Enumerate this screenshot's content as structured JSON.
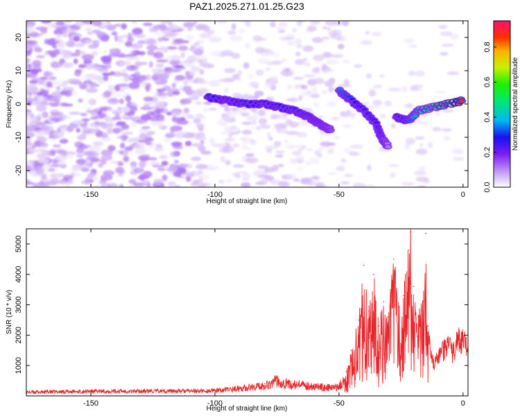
{
  "title": "PAZ1.2025.271.01.25.G23",
  "colors": {
    "snr_line": "#e8262a",
    "axis": "#000000",
    "background": "#ffffff"
  },
  "chart_data": [
    {
      "type": "heatmap",
      "name": "spectrogram",
      "xlabel": "Height of straight line (km)",
      "ylabel": "Frequency (Hz)",
      "xlim": [
        -176,
        2
      ],
      "ylim": [
        -25,
        25
      ],
      "x_ticks": [
        -150,
        -100,
        -50,
        0
      ],
      "y_ticks": [
        -20,
        -10,
        0,
        10,
        20
      ],
      "colorbar": {
        "label": "Normalized spectral amplitude",
        "range": [
          0,
          0.95
        ],
        "ticks": [
          0.0,
          0.2,
          0.4,
          0.6,
          0.8
        ],
        "colormap": "white-purple-blue-cyan-green-yellow-orange-red"
      },
      "ridge": [
        {
          "x": -103,
          "f": 2,
          "amp": 0.3
        },
        {
          "x": -95,
          "f": 1,
          "amp": 0.22
        },
        {
          "x": -88,
          "f": 0,
          "amp": 0.3
        },
        {
          "x": -80,
          "f": 0,
          "amp": 0.25
        },
        {
          "x": -74,
          "f": -1,
          "amp": 0.28
        },
        {
          "x": -68,
          "f": -2,
          "amp": 0.25
        },
        {
          "x": -62,
          "f": -4,
          "amp": 0.22
        },
        {
          "x": -58,
          "f": -6,
          "amp": 0.2
        },
        {
          "x": -53,
          "f": -8,
          "amp": 0.15
        },
        {
          "x": -50,
          "f": 4,
          "amp": 0.35
        },
        {
          "x": -45,
          "f": 1,
          "amp": 0.3
        },
        {
          "x": -40,
          "f": -2,
          "amp": 0.25
        },
        {
          "x": -35,
          "f": -6,
          "amp": 0.25
        },
        {
          "x": -33,
          "f": -10,
          "amp": 0.2
        },
        {
          "x": -30,
          "f": -13,
          "amp": 0.1
        },
        {
          "x": -27,
          "f": -4,
          "amp": 0.25
        },
        {
          "x": -22,
          "f": -5,
          "amp": 0.3
        },
        {
          "x": -18,
          "f": -2,
          "amp": 0.45
        },
        {
          "x": -12,
          "f": -1,
          "amp": 0.5
        },
        {
          "x": -6,
          "f": 0,
          "amp": 0.6
        },
        {
          "x": 0,
          "f": 1,
          "amp": 0.9
        }
      ]
    },
    {
      "type": "line",
      "name": "snr",
      "xlabel": "Height of straight line (km)",
      "ylabel": "SNR (10 * v/v)",
      "xlim": [
        -176,
        2
      ],
      "ylim": [
        0,
        5500
      ],
      "x_ticks": [
        -150,
        -100,
        -50,
        0
      ],
      "y_ticks": [
        1000,
        2000,
        3000,
        4000,
        5000
      ],
      "series": [
        {
          "name": "SNR",
          "x": [
            -176,
            -150,
            -100,
            -90,
            -80,
            -75,
            -70,
            -60,
            -55,
            -50,
            -47,
            -45,
            -42,
            -40,
            -38,
            -36,
            -34,
            -32,
            -30,
            -28,
            -26,
            -24,
            -22,
            -21,
            -20,
            -18,
            -16,
            -15,
            -14,
            -12,
            -10,
            -8,
            -6,
            -4,
            -2,
            0,
            2
          ],
          "y": [
            150,
            180,
            200,
            300,
            400,
            600,
            450,
            380,
            320,
            350,
            800,
            1500,
            2500,
            4300,
            2800,
            4000,
            2300,
            3100,
            2600,
            4500,
            2900,
            3300,
            4800,
            5400,
            3600,
            2600,
            3100,
            5350,
            2300,
            1200,
            1300,
            1600,
            1800,
            1500,
            2000,
            1900,
            1800
          ]
        }
      ]
    }
  ]
}
